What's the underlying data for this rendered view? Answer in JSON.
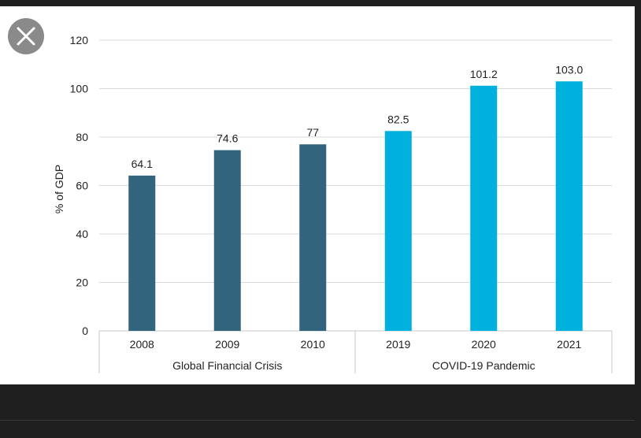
{
  "chart_data": {
    "type": "bar",
    "categories": [
      "2008",
      "2009",
      "2010",
      "2019",
      "2020",
      "2021"
    ],
    "values": [
      64.1,
      74.6,
      77,
      82.5,
      101.2,
      103.0
    ],
    "value_labels": [
      "64.1",
      "74.6",
      "77",
      "82.5",
      "101.2",
      "103.0"
    ],
    "groups": [
      {
        "name": "Global Financial Crisis",
        "categories": [
          "2008",
          "2009",
          "2010"
        ],
        "color": "#33647d"
      },
      {
        "name": "COVID-19 Pandemic",
        "categories": [
          "2019",
          "2020",
          "2021"
        ],
        "color": "#00b0dd"
      }
    ],
    "title": "",
    "xlabel": "",
    "ylabel": "% of GDP",
    "ylim": [
      0,
      120
    ],
    "yticks": [
      0,
      20,
      40,
      60,
      80,
      100,
      120
    ],
    "grid": true
  },
  "colors": {
    "dark_bar": "#33647d",
    "light_bar": "#00b0dd",
    "gridline": "#d9d9d9",
    "page_background": "#1f1f1f"
  },
  "close_button": {
    "icon": "close-icon"
  }
}
